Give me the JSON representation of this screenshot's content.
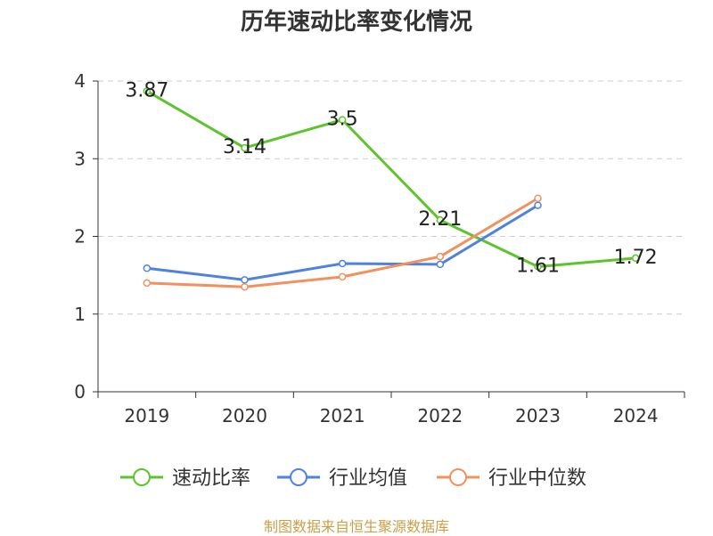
{
  "chart_data": {
    "type": "line",
    "title": "历年速动比率变化情况",
    "categories": [
      "2019",
      "2020",
      "2021",
      "2022",
      "2023",
      "2024"
    ],
    "ylim": [
      0,
      4
    ],
    "yticks": [
      0,
      1,
      2,
      3,
      4
    ],
    "grid": true,
    "legend_position": "bottom",
    "series": [
      {
        "name": "速动比率",
        "color": "#5cc42c",
        "values": [
          3.87,
          3.14,
          3.5,
          2.21,
          1.61,
          1.72
        ],
        "labels": [
          "3.87",
          "3.14",
          "3.5",
          "2.21",
          "1.61",
          "1.72"
        ]
      },
      {
        "name": "行业均值",
        "color": "#4e82de",
        "values": [
          1.59,
          1.44,
          1.65,
          1.64,
          2.4,
          null
        ]
      },
      {
        "name": "行业中位数",
        "color": "#f2915f",
        "values": [
          1.4,
          1.35,
          1.48,
          1.74,
          2.49,
          null
        ]
      }
    ]
  },
  "source": "制图数据来自恒生聚源数据库"
}
